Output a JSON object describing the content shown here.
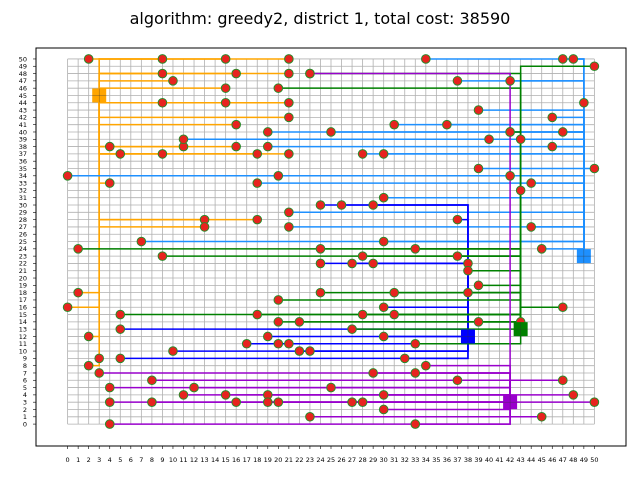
{
  "chart_data": {
    "type": "scatter",
    "title": "algorithm: greedy2, district 1, total cost: 38590",
    "xlabel": "",
    "ylabel": "",
    "xlim": [
      -3,
      53
    ],
    "ylim": [
      -3,
      51.5
    ],
    "x_ticks": [
      0,
      1,
      2,
      3,
      4,
      5,
      6,
      7,
      8,
      9,
      10,
      11,
      12,
      13,
      14,
      15,
      16,
      17,
      18,
      19,
      20,
      21,
      22,
      23,
      24,
      25,
      26,
      27,
      28,
      29,
      30,
      31,
      32,
      33,
      34,
      35,
      36,
      37,
      38,
      39,
      40,
      41,
      42,
      43,
      44,
      45,
      46,
      47,
      48,
      49,
      50
    ],
    "y_ticks": [
      0,
      1,
      2,
      3,
      4,
      5,
      6,
      7,
      8,
      9,
      10,
      11,
      12,
      13,
      14,
      15,
      16,
      17,
      18,
      19,
      20,
      21,
      22,
      23,
      24,
      25,
      26,
      27,
      28,
      29,
      30,
      31,
      32,
      33,
      34,
      35,
      36,
      37,
      38,
      39,
      40,
      41,
      42,
      43,
      44,
      45,
      46,
      47,
      48,
      49,
      50
    ],
    "grid": true,
    "colors": {
      "house_fill": "#e8231f",
      "house_edge": "#2a8a2a",
      "grid": "#b0b0b0"
    },
    "batteries": [
      {
        "color": "#ffa500",
        "x": 3,
        "y": 45
      },
      {
        "color": "#1e90ff",
        "x": 49,
        "y": 23
      },
      {
        "color": "#0000ff",
        "x": 38,
        "y": 12
      },
      {
        "color": "#008000",
        "x": 43,
        "y": 13
      },
      {
        "color": "#9900cc",
        "x": 42,
        "y": 3
      }
    ],
    "houses": [
      {
        "battery": 0,
        "x": 2,
        "y": 50
      },
      {
        "battery": 0,
        "x": 9,
        "y": 50
      },
      {
        "battery": 0,
        "x": 15,
        "y": 50
      },
      {
        "battery": 0,
        "x": 21,
        "y": 50
      },
      {
        "battery": 0,
        "x": 9,
        "y": 48
      },
      {
        "battery": 0,
        "x": 16,
        "y": 48
      },
      {
        "battery": 0,
        "x": 21,
        "y": 48
      },
      {
        "battery": 0,
        "x": 10,
        "y": 47
      },
      {
        "battery": 0,
        "x": 15,
        "y": 46
      },
      {
        "battery": 0,
        "x": 9,
        "y": 44
      },
      {
        "battery": 0,
        "x": 15,
        "y": 44
      },
      {
        "battery": 0,
        "x": 21,
        "y": 44
      },
      {
        "battery": 0,
        "x": 21,
        "y": 42
      },
      {
        "battery": 0,
        "x": 16,
        "y": 41
      },
      {
        "battery": 0,
        "x": 4,
        "y": 38
      },
      {
        "battery": 0,
        "x": 5,
        "y": 37
      },
      {
        "battery": 0,
        "x": 9,
        "y": 37
      },
      {
        "battery": 0,
        "x": 11,
        "y": 38
      },
      {
        "battery": 0,
        "x": 16,
        "y": 38
      },
      {
        "battery": 0,
        "x": 18,
        "y": 37
      },
      {
        "battery": 0,
        "x": 21,
        "y": 37
      },
      {
        "battery": 0,
        "x": 4,
        "y": 33
      },
      {
        "battery": 0,
        "x": 13,
        "y": 28
      },
      {
        "battery": 0,
        "x": 18,
        "y": 28
      },
      {
        "battery": 0,
        "x": 13,
        "y": 27
      },
      {
        "battery": 0,
        "x": 1,
        "y": 18
      },
      {
        "battery": 0,
        "x": 0,
        "y": 16
      },
      {
        "battery": 0,
        "x": 2,
        "y": 12
      },
      {
        "battery": 0,
        "x": 3,
        "y": 9
      },
      {
        "battery": 0,
        "x": 2,
        "y": 8
      },
      {
        "battery": 1,
        "x": 34,
        "y": 50
      },
      {
        "battery": 1,
        "x": 47,
        "y": 50
      },
      {
        "battery": 1,
        "x": 48,
        "y": 50
      },
      {
        "battery": 1,
        "x": 37,
        "y": 47
      },
      {
        "battery": 1,
        "x": 42,
        "y": 47
      },
      {
        "battery": 1,
        "x": 39,
        "y": 43
      },
      {
        "battery": 1,
        "x": 46,
        "y": 42
      },
      {
        "battery": 1,
        "x": 49,
        "y": 44
      },
      {
        "battery": 1,
        "x": 31,
        "y": 41
      },
      {
        "battery": 1,
        "x": 36,
        "y": 41
      },
      {
        "battery": 1,
        "x": 42,
        "y": 40
      },
      {
        "battery": 1,
        "x": 47,
        "y": 40
      },
      {
        "battery": 1,
        "x": 40,
        "y": 39
      },
      {
        "battery": 1,
        "x": 46,
        "y": 38
      },
      {
        "battery": 1,
        "x": 25,
        "y": 40
      },
      {
        "battery": 1,
        "x": 19,
        "y": 40
      },
      {
        "battery": 1,
        "x": 11,
        "y": 39
      },
      {
        "battery": 1,
        "x": 19,
        "y": 38
      },
      {
        "battery": 1,
        "x": 28,
        "y": 37
      },
      {
        "battery": 1,
        "x": 30,
        "y": 37
      },
      {
        "battery": 1,
        "x": 39,
        "y": 35
      },
      {
        "battery": 1,
        "x": 42,
        "y": 34
      },
      {
        "battery": 1,
        "x": 44,
        "y": 33
      },
      {
        "battery": 1,
        "x": 50,
        "y": 35
      },
      {
        "battery": 1,
        "x": 0,
        "y": 34
      },
      {
        "battery": 1,
        "x": 20,
        "y": 34
      },
      {
        "battery": 1,
        "x": 18,
        "y": 33
      },
      {
        "battery": 1,
        "x": 30,
        "y": 31
      },
      {
        "battery": 1,
        "x": 21,
        "y": 29
      },
      {
        "battery": 1,
        "x": 44,
        "y": 27
      },
      {
        "battery": 1,
        "x": 7,
        "y": 25
      },
      {
        "battery": 1,
        "x": 30,
        "y": 25
      },
      {
        "battery": 1,
        "x": 45,
        "y": 24
      },
      {
        "battery": 1,
        "x": 21,
        "y": 27
      },
      {
        "battery": 2,
        "x": 24,
        "y": 30
      },
      {
        "battery": 2,
        "x": 26,
        "y": 30
      },
      {
        "battery": 2,
        "x": 29,
        "y": 30
      },
      {
        "battery": 2,
        "x": 37,
        "y": 28
      },
      {
        "battery": 2,
        "x": 24,
        "y": 22
      },
      {
        "battery": 2,
        "x": 27,
        "y": 22
      },
      {
        "battery": 2,
        "x": 29,
        "y": 22
      },
      {
        "battery": 2,
        "x": 38,
        "y": 22
      },
      {
        "battery": 2,
        "x": 30,
        "y": 16
      },
      {
        "battery": 2,
        "x": 5,
        "y": 13
      },
      {
        "battery": 2,
        "x": 19,
        "y": 12
      },
      {
        "battery": 2,
        "x": 30,
        "y": 12
      },
      {
        "battery": 2,
        "x": 10,
        "y": 10
      },
      {
        "battery": 2,
        "x": 17,
        "y": 11
      },
      {
        "battery": 2,
        "x": 20,
        "y": 11
      },
      {
        "battery": 2,
        "x": 21,
        "y": 11
      },
      {
        "battery": 2,
        "x": 22,
        "y": 10
      },
      {
        "battery": 2,
        "x": 23,
        "y": 10
      },
      {
        "battery": 2,
        "x": 5,
        "y": 9
      },
      {
        "battery": 2,
        "x": 32,
        "y": 9
      },
      {
        "battery": 3,
        "x": 1,
        "y": 24
      },
      {
        "battery": 3,
        "x": 9,
        "y": 23
      },
      {
        "battery": 3,
        "x": 24,
        "y": 24
      },
      {
        "battery": 3,
        "x": 28,
        "y": 23
      },
      {
        "battery": 3,
        "x": 33,
        "y": 24
      },
      {
        "battery": 3,
        "x": 37,
        "y": 23
      },
      {
        "battery": 3,
        "x": 38,
        "y": 21
      },
      {
        "battery": 3,
        "x": 39,
        "y": 19
      },
      {
        "battery": 3,
        "x": 38,
        "y": 18
      },
      {
        "battery": 3,
        "x": 24,
        "y": 18
      },
      {
        "battery": 3,
        "x": 31,
        "y": 18
      },
      {
        "battery": 3,
        "x": 20,
        "y": 17
      },
      {
        "battery": 3,
        "x": 47,
        "y": 16
      },
      {
        "battery": 3,
        "x": 18,
        "y": 15
      },
      {
        "battery": 3,
        "x": 28,
        "y": 15
      },
      {
        "battery": 3,
        "x": 31,
        "y": 15
      },
      {
        "battery": 3,
        "x": 20,
        "y": 14
      },
      {
        "battery": 3,
        "x": 22,
        "y": 14
      },
      {
        "battery": 3,
        "x": 39,
        "y": 14
      },
      {
        "battery": 3,
        "x": 27,
        "y": 13
      },
      {
        "battery": 3,
        "x": 43,
        "y": 14
      },
      {
        "battery": 3,
        "x": 33,
        "y": 11
      },
      {
        "battery": 3,
        "x": 5,
        "y": 15
      },
      {
        "battery": 3,
        "x": 50,
        "y": 49
      },
      {
        "battery": 3,
        "x": 23,
        "y": 48
      },
      {
        "battery": 3,
        "x": 43,
        "y": 39
      },
      {
        "battery": 3,
        "x": 43,
        "y": 32
      },
      {
        "battery": 3,
        "x": 42,
        "y": 40
      },
      {
        "battery": 3,
        "x": 20,
        "y": 46
      },
      {
        "battery": 4,
        "x": 34,
        "y": 8
      },
      {
        "battery": 4,
        "x": 37,
        "y": 6
      },
      {
        "battery": 4,
        "x": 47,
        "y": 6
      },
      {
        "battery": 4,
        "x": 8,
        "y": 6
      },
      {
        "battery": 4,
        "x": 29,
        "y": 7
      },
      {
        "battery": 4,
        "x": 33,
        "y": 7
      },
      {
        "battery": 4,
        "x": 3,
        "y": 7
      },
      {
        "battery": 4,
        "x": 4,
        "y": 5
      },
      {
        "battery": 4,
        "x": 12,
        "y": 5
      },
      {
        "battery": 4,
        "x": 25,
        "y": 5
      },
      {
        "battery": 4,
        "x": 11,
        "y": 4
      },
      {
        "battery": 4,
        "x": 15,
        "y": 4
      },
      {
        "battery": 4,
        "x": 19,
        "y": 4
      },
      {
        "battery": 4,
        "x": 30,
        "y": 4
      },
      {
        "battery": 4,
        "x": 48,
        "y": 4
      },
      {
        "battery": 4,
        "x": 4,
        "y": 3
      },
      {
        "battery": 4,
        "x": 8,
        "y": 3
      },
      {
        "battery": 4,
        "x": 16,
        "y": 3
      },
      {
        "battery": 4,
        "x": 19,
        "y": 3
      },
      {
        "battery": 4,
        "x": 20,
        "y": 3
      },
      {
        "battery": 4,
        "x": 27,
        "y": 3
      },
      {
        "battery": 4,
        "x": 28,
        "y": 3
      },
      {
        "battery": 4,
        "x": 30,
        "y": 2
      },
      {
        "battery": 4,
        "x": 50,
        "y": 3
      },
      {
        "battery": 4,
        "x": 23,
        "y": 1
      },
      {
        "battery": 4,
        "x": 45,
        "y": 1
      },
      {
        "battery": 4,
        "x": 4,
        "y": 0
      },
      {
        "battery": 4,
        "x": 33,
        "y": 0
      },
      {
        "battery": 4,
        "x": 23,
        "y": 48
      }
    ]
  }
}
